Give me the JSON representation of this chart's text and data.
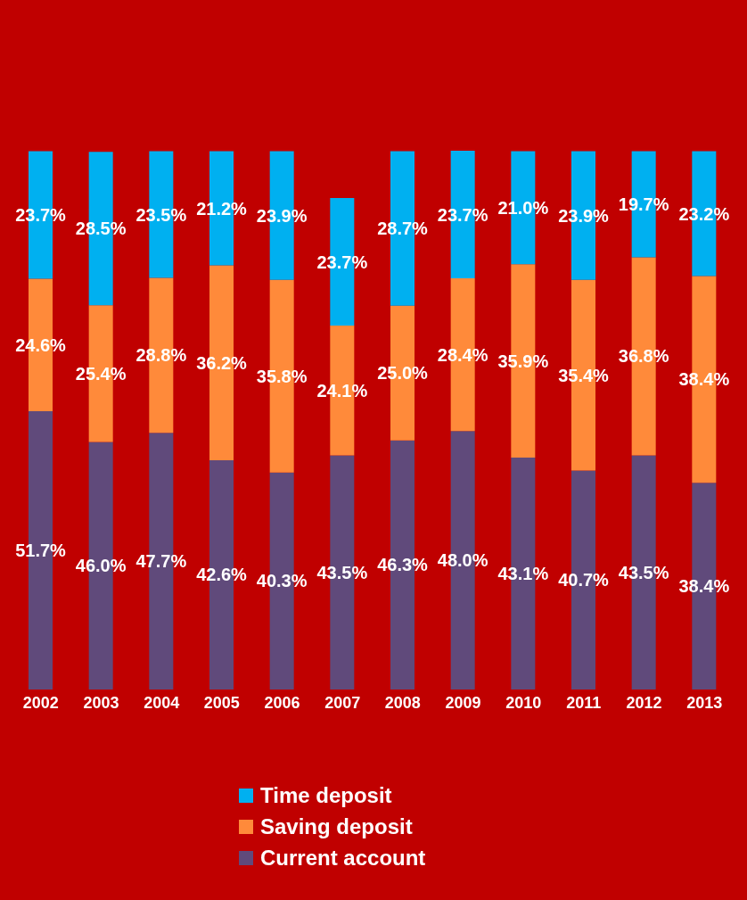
{
  "chart_data": {
    "type": "bar",
    "stacked": true,
    "legend": "bottom",
    "categories": [
      "2002",
      "2003",
      "2004",
      "2005",
      "2006",
      "2007",
      "2008",
      "2009",
      "2010",
      "2011",
      "2012",
      "2013"
    ],
    "series": [
      {
        "name": "Current account",
        "color": "#604a7b",
        "values": [
          51.7,
          46.0,
          47.7,
          42.6,
          40.3,
          43.5,
          46.3,
          48.0,
          43.1,
          40.7,
          43.5,
          38.4
        ],
        "value_labels": [
          "51.7%",
          "46.0%",
          "47.7%",
          "42.6%",
          "40.3%",
          "43.5%",
          "46.3%",
          "48.0%",
          "43.1%",
          "40.7%",
          "43.5%",
          "38.4%"
        ]
      },
      {
        "name": "Saving deposit",
        "color": "#ff8a3a",
        "values": [
          24.6,
          25.4,
          28.8,
          36.2,
          35.8,
          24.1,
          25.0,
          28.4,
          35.9,
          35.4,
          36.8,
          38.4
        ],
        "value_labels": [
          "24.6%",
          "25.4%",
          "28.8%",
          "36.2%",
          "35.8%",
          "24.1%",
          "25.0%",
          "28.4%",
          "35.9%",
          "35.4%",
          "36.8%",
          "38.4%"
        ]
      },
      {
        "name": "Time deposit",
        "color": "#00b0f0",
        "values": [
          23.7,
          28.5,
          23.5,
          21.2,
          23.9,
          23.7,
          28.7,
          23.7,
          21.0,
          23.9,
          19.7,
          23.2
        ],
        "value_labels": [
          "23.7%",
          "28.5%",
          "23.5%",
          "21.2%",
          "23.9%",
          "23.7%",
          "28.7%",
          "23.7%",
          "21.0%",
          "23.9%",
          "19.7%",
          "23.2%"
        ]
      }
    ]
  }
}
